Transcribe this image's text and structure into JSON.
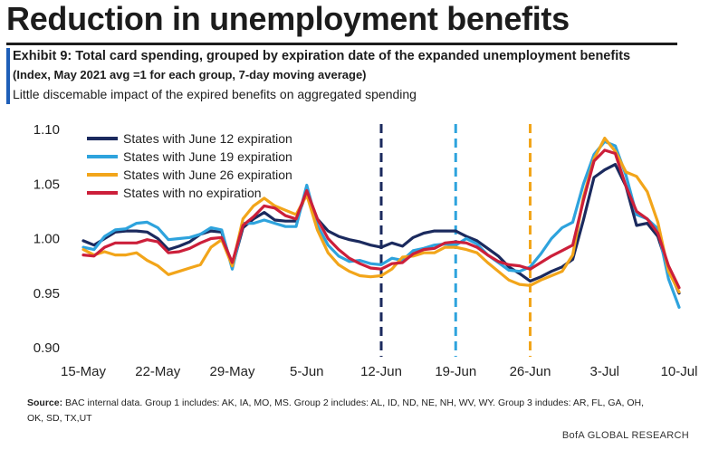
{
  "header": {
    "title": "Reduction in unemployment benefits",
    "exhibit_title": "Exhibit 9: Total card spending, grouped by expiration date of the expanded unemployment benefits",
    "exhibit_subtitle": "(Index, May 2021 avg =1 for each group, 7-day moving average)",
    "exhibit_description": "Little discemable impact of the expired benefits on aggregated spending"
  },
  "source": {
    "label": "Source:",
    "text": "BAC internal data. Group 1 includes: AK, IA, MO, MS. Group 2 includes: AL, ID, ND, NE, NH, WV, WY. Group 3 indudes: AR, FL, GA, OH, OK, SD, TX,UT"
  },
  "footer": "BofA GLOBAL RESEARCH",
  "chart_data": {
    "type": "line",
    "title": "Exhibit 9: Total card spending, grouped by expiration date of the expanded unemployment benefits",
    "xlabel": "",
    "ylabel": "",
    "ylim": [
      0.9,
      1.1
    ],
    "yticks": [
      "1.10",
      "1.05",
      "1.00",
      "0.95",
      "0.90"
    ],
    "ytick_values": [
      1.1,
      1.05,
      1.0,
      0.95,
      0.9
    ],
    "xticks": [
      "15-May",
      "22-May",
      "29-May",
      "5-Jun",
      "12-Jun",
      "19-Jun",
      "26-Jun",
      "3-Jul",
      "10-Jul"
    ],
    "x_days_from_15_may": [
      0,
      1,
      2,
      3,
      4,
      5,
      6,
      7,
      8,
      9,
      10,
      11,
      12,
      13,
      14,
      15,
      16,
      17,
      18,
      19,
      20,
      21,
      22,
      23,
      24,
      25,
      26,
      27,
      28,
      29,
      30,
      31,
      32,
      33,
      34,
      35,
      36,
      37,
      38,
      39,
      40,
      41,
      42,
      43,
      44,
      45,
      46,
      47,
      48,
      49,
      50,
      51,
      52,
      53,
      54,
      55,
      56
    ],
    "vertical_lines": [
      {
        "day": 28,
        "color": "#1b2a5e"
      },
      {
        "day": 35,
        "color": "#2ea3dd"
      },
      {
        "day": 42,
        "color": "#f2a51a"
      }
    ],
    "legend_position": "top-left",
    "series": [
      {
        "name": "States with June 12 expiration",
        "color": "#1b2a5e",
        "values": [
          0.998,
          0.994,
          1.0,
          1.006,
          1.007,
          1.007,
          1.006,
          1.0,
          0.99,
          0.993,
          0.997,
          1.004,
          1.007,
          1.006,
          0.974,
          1.01,
          1.018,
          1.024,
          1.017,
          1.016,
          1.016,
          1.043,
          1.018,
          1.007,
          1.002,
          0.999,
          0.997,
          0.994,
          0.992,
          0.996,
          0.993,
          1.001,
          1.005,
          1.007,
          1.007,
          1.007,
          1.002,
          0.998,
          0.991,
          0.984,
          0.974,
          0.968,
          0.961,
          0.965,
          0.97,
          0.974,
          0.981,
          1.017,
          1.056,
          1.063,
          1.068,
          1.048,
          1.012,
          1.014,
          1.002,
          0.972,
          0.95
        ]
      },
      {
        "name": "States with June 19 expiration",
        "color": "#2ea3dd",
        "values": [
          0.992,
          0.99,
          1.002,
          1.008,
          1.009,
          1.014,
          1.015,
          1.01,
          0.999,
          1.0,
          1.001,
          1.004,
          1.01,
          1.008,
          0.972,
          1.014,
          1.014,
          1.017,
          1.014,
          1.011,
          1.011,
          1.049,
          1.012,
          0.994,
          0.984,
          0.979,
          0.98,
          0.977,
          0.976,
          0.982,
          0.98,
          0.989,
          0.991,
          0.994,
          0.995,
          0.994,
          1.0,
          0.995,
          0.985,
          0.978,
          0.971,
          0.97,
          0.974,
          0.986,
          1.0,
          1.01,
          1.015,
          1.05,
          1.077,
          1.089,
          1.085,
          1.058,
          1.022,
          1.018,
          1.009,
          0.963,
          0.937
        ]
      },
      {
        "name": "States with June 26 expiration",
        "color": "#f2a51a",
        "values": [
          0.99,
          0.985,
          0.988,
          0.985,
          0.985,
          0.987,
          0.98,
          0.975,
          0.967,
          0.97,
          0.973,
          0.976,
          0.992,
          0.999,
          0.975,
          1.018,
          1.03,
          1.037,
          1.03,
          1.026,
          1.022,
          1.04,
          1.008,
          0.987,
          0.976,
          0.97,
          0.966,
          0.965,
          0.966,
          0.972,
          0.983,
          0.984,
          0.987,
          0.987,
          0.992,
          0.992,
          0.99,
          0.987,
          0.978,
          0.97,
          0.962,
          0.958,
          0.957,
          0.962,
          0.966,
          0.97,
          0.985,
          1.038,
          1.073,
          1.092,
          1.08,
          1.061,
          1.057,
          1.043,
          1.015,
          0.97,
          0.951
        ]
      },
      {
        "name": "States with no expiration",
        "color": "#cc1f3a",
        "values": [
          0.985,
          0.984,
          0.992,
          0.996,
          0.996,
          0.996,
          0.999,
          0.997,
          0.987,
          0.988,
          0.991,
          0.996,
          1.0,
          1.001,
          0.978,
          1.012,
          1.02,
          1.03,
          1.028,
          1.021,
          1.018,
          1.044,
          1.018,
          1.0,
          0.99,
          0.982,
          0.977,
          0.973,
          0.972,
          0.977,
          0.978,
          0.986,
          0.99,
          0.991,
          0.996,
          0.997,
          0.996,
          0.992,
          0.985,
          0.979,
          0.976,
          0.975,
          0.972,
          0.978,
          0.984,
          0.989,
          0.994,
          1.035,
          1.071,
          1.081,
          1.078,
          1.048,
          1.025,
          1.018,
          1.005,
          0.975,
          0.955
        ]
      }
    ]
  }
}
